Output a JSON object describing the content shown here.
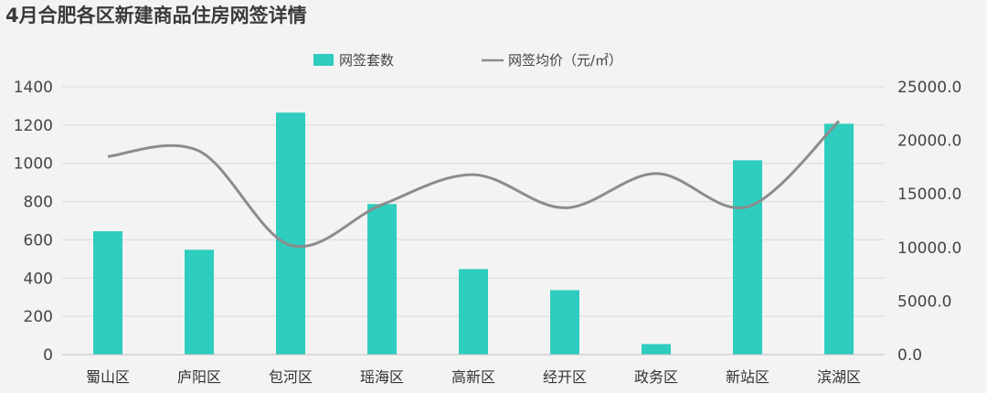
{
  "chart_data": {
    "type": "bar",
    "title": "4月合肥各区新建商品住房网签详情",
    "categories": [
      "蜀山区",
      "庐阳区",
      "包河区",
      "瑶海区",
      "高新区",
      "经开区",
      "政务区",
      "新站区",
      "滨湖区"
    ],
    "series": [
      {
        "name": "网签套数",
        "type": "bar",
        "axis": "left",
        "color": "#2ecdbf",
        "values": [
          645,
          548,
          1265,
          787,
          447,
          337,
          55,
          1016,
          1207
        ]
      },
      {
        "name": "网签均价（元/㎡）",
        "type": "line",
        "axis": "right",
        "color": "#8c8c8c",
        "values": [
          18500,
          19000,
          10200,
          14000,
          16800,
          13700,
          16900,
          13800,
          21800
        ]
      }
    ],
    "y_left": {
      "range": [
        0,
        1400
      ],
      "ticks": [
        "0",
        "200",
        "400",
        "600",
        "800",
        "1000",
        "1200",
        "1400"
      ]
    },
    "y_right": {
      "range": [
        0,
        25000
      ],
      "ticks": [
        "0.0",
        "5000.0",
        "10000.0",
        "15000.0",
        "20000.0",
        "25000.0"
      ]
    },
    "grid": true,
    "legend_position": "top-center"
  }
}
